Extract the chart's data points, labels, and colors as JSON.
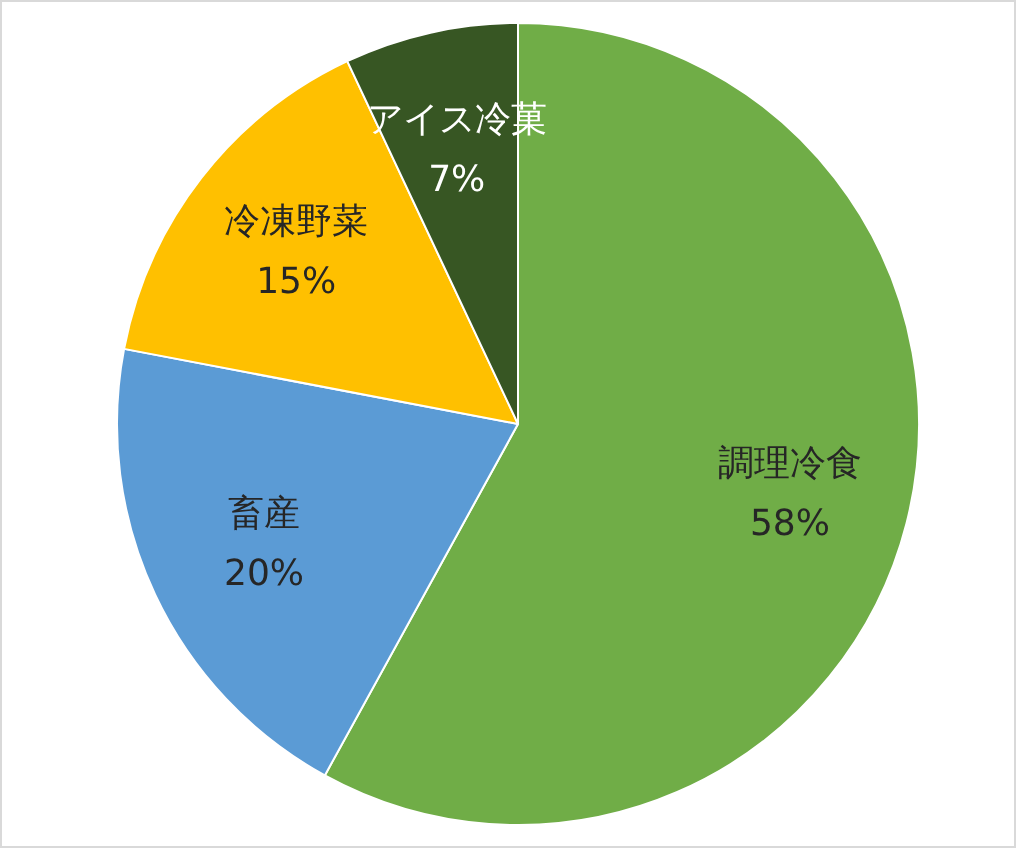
{
  "chart_data": {
    "type": "pie",
    "categories": [
      "調理冷食",
      "畜産",
      "冷凍野菜",
      "アイス冷菓"
    ],
    "values": [
      58,
      20,
      15,
      7
    ],
    "colors": [
      "#70ad47",
      "#5b9bd5",
      "#ffc000",
      "#375623"
    ],
    "value_labels": [
      "58%",
      "20%",
      "15%",
      "7%"
    ],
    "legend": false
  }
}
